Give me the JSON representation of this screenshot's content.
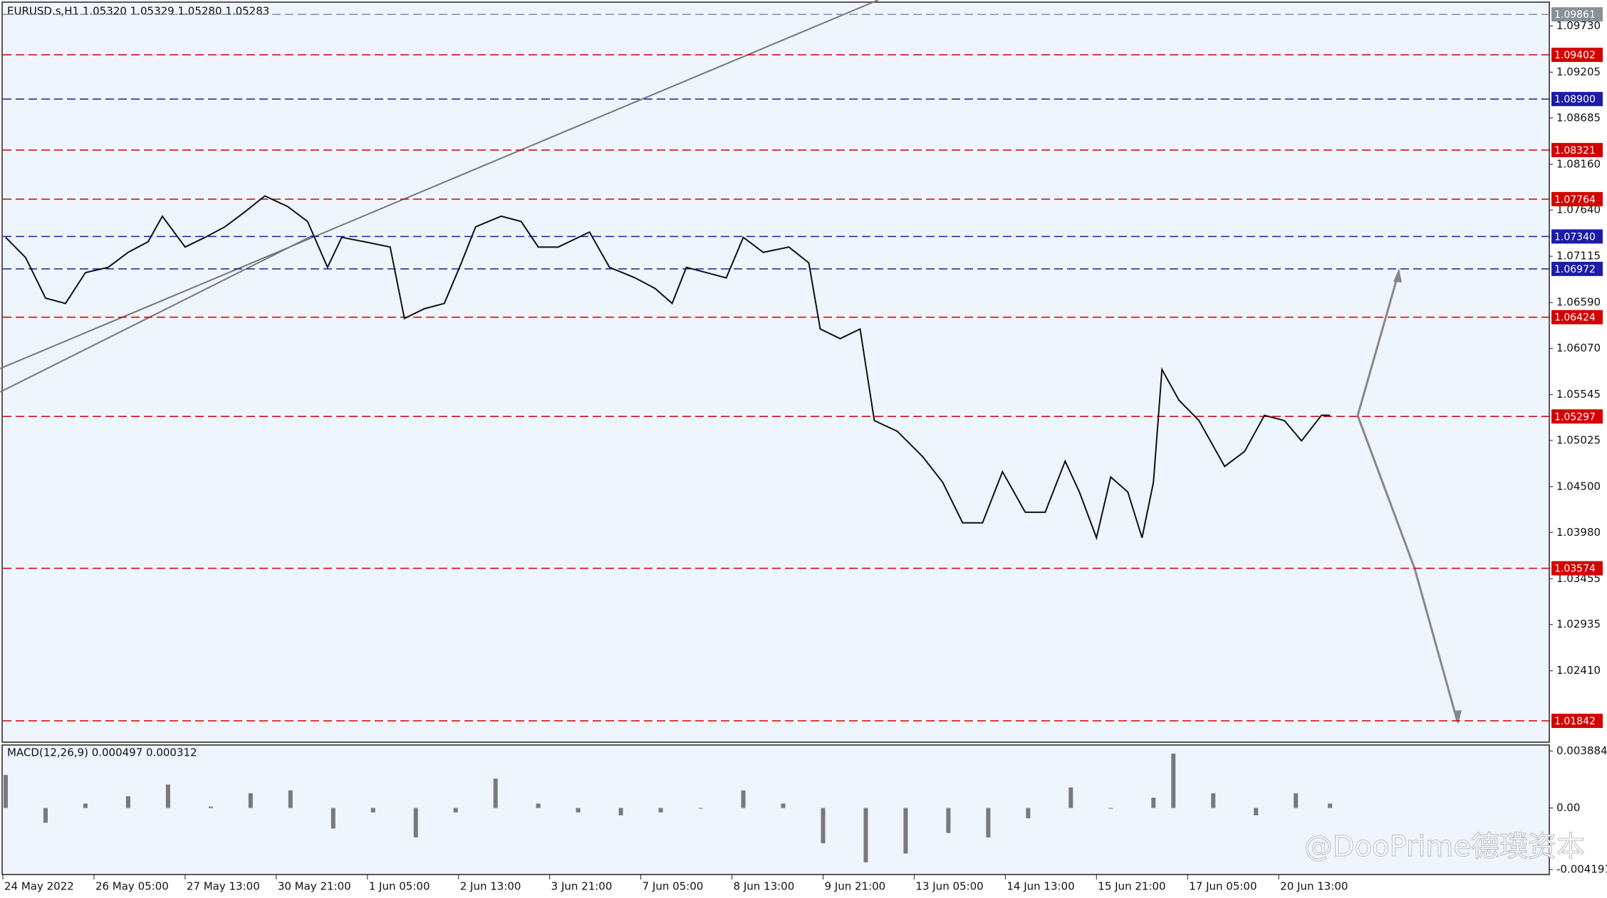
{
  "chart_data": [
    {
      "type": "line",
      "title": "EURUSD.s,H1  1.05320 1.05329 1.05280 1.05283",
      "annotation": "@DooPrime德璞资本",
      "xlim": [
        0,
        543
      ],
      "ylim": [
        1.016,
        1.1
      ],
      "xticks": [
        {
          "value": 0,
          "label": "24 May 2022"
        },
        {
          "value": 32,
          "label": "26 May 05:00"
        },
        {
          "value": 64,
          "label": "27 May 13:00"
        },
        {
          "value": 96,
          "label": "30 May 21:00"
        },
        {
          "value": 128,
          "label": "1 Jun 05:00"
        },
        {
          "value": 160,
          "label": "2 Jun 13:00"
        },
        {
          "value": 192,
          "label": "3 Jun 21:00"
        },
        {
          "value": 224,
          "label": "7 Jun 05:00"
        },
        {
          "value": 256,
          "label": "8 Jun 13:00"
        },
        {
          "value": 288,
          "label": "9 Jun 21:00"
        },
        {
          "value": 320,
          "label": "13 Jun 05:00"
        },
        {
          "value": 352,
          "label": "14 Jun 13:00"
        },
        {
          "value": 384,
          "label": "15 Jun 21:00"
        },
        {
          "value": 416,
          "label": "17 Jun 05:00"
        },
        {
          "value": 448,
          "label": "20 Jun 13:00"
        }
      ],
      "yticks": [
        {
          "value": 1.0973,
          "label": "1.09730"
        },
        1.09205,
        1.08685,
        {
          "value": 1.0816,
          "label": "1.08160"
        },
        {
          "value": 1.0764,
          "label": "1.07640"
        },
        1.07115,
        {
          "value": 1.0659,
          "label": "1.06590"
        },
        {
          "value": 1.0607,
          "label": "1.06070"
        },
        1.05545,
        1.05025,
        {
          "value": 1.045,
          "label": "1.04500"
        },
        {
          "value": 1.0398,
          "label": "1.03980"
        },
        1.03455,
        1.02935,
        {
          "value": 1.0241,
          "label": "1.02410"
        }
      ],
      "levels": [
        {
          "value": 1.09861,
          "color": "#8a8f99"
        },
        {
          "value": 1.09402,
          "color": "#d40000"
        },
        {
          "value": 1.089,
          "label": "1.08900",
          "color": "#1c1ca8"
        },
        {
          "value": 1.08321,
          "color": "#d40000"
        },
        {
          "value": 1.07764,
          "color": "#d40000"
        },
        {
          "value": 1.0734,
          "label": "1.07340",
          "color": "#1c1ca8"
        },
        {
          "value": 1.06972,
          "color": "#1c1ca8"
        },
        {
          "value": 1.06424,
          "color": "#d40000"
        },
        {
          "value": 1.05297,
          "color": "#d40000"
        },
        {
          "value": 1.03574,
          "color": "#d40000"
        },
        {
          "value": 1.01842,
          "color": "#d40000"
        }
      ],
      "series": [
        {
          "color": "#111111",
          "x": [
            1,
            8,
            15,
            22,
            29,
            37,
            44,
            51,
            56,
            64,
            71,
            78,
            85,
            92,
            100,
            107,
            114,
            119,
            127,
            136,
            141,
            148,
            155,
            161,
            166,
            175,
            182,
            188,
            195,
            206,
            213,
            222,
            229,
            235,
            240,
            247,
            254,
            260,
            267,
            276,
            283,
            287,
            294,
            301,
            306,
            314,
            323,
            330,
            337,
            344,
            351,
            359,
            366,
            373,
            378,
            384,
            389,
            395,
            400,
            404,
            407,
            413,
            420,
            429,
            436,
            443,
            450,
            456,
            463,
            466
          ],
          "values": [
            1.0733,
            1.071,
            1.0664,
            1.0658,
            1.0693,
            1.0699,
            1.0716,
            1.0728,
            1.0757,
            1.0722,
            1.0733,
            1.0745,
            1.0762,
            1.078,
            1.0768,
            1.0751,
            1.0699,
            1.0733,
            1.0728,
            1.0722,
            1.0641,
            1.0652,
            1.0658,
            1.0704,
            1.0745,
            1.0757,
            1.0751,
            1.0722,
            1.0722,
            1.0739,
            1.0699,
            1.0687,
            1.0675,
            1.0658,
            1.0699,
            1.0693,
            1.0687,
            1.0733,
            1.0716,
            1.0722,
            1.0704,
            1.0629,
            1.0618,
            1.0629,
            1.0525,
            1.0513,
            1.0484,
            1.0455,
            1.0409,
            1.0409,
            1.0467,
            1.0421,
            1.0421,
            1.0479,
            1.0444,
            1.0392,
            1.0461,
            1.0444,
            1.0392,
            1.0455,
            1.0583,
            1.0548,
            1.0525,
            1.0473,
            1.049,
            1.0531,
            1.0525,
            1.0502,
            1.0531,
            1.0531
          ]
        }
      ]
    },
    {
      "type": "bar",
      "title": "MACD(12,26,9) 0.000497 0.000312",
      "xlim": [
        0,
        543
      ],
      "ylim": [
        -0.00453,
        0.00429
      ],
      "yticks": [
        0.003884,
        {
          "value": 0,
          "label": "0.00"
        },
        -0.004191
      ],
      "color": "#7a7a7a",
      "x": [
        1,
        15,
        29,
        44,
        58,
        73,
        87,
        101,
        116,
        130,
        145,
        159,
        173,
        188,
        202,
        217,
        231,
        245,
        260,
        274,
        288,
        303,
        317,
        332,
        346,
        360,
        375,
        389,
        404,
        411,
        425,
        440,
        454,
        466
      ],
      "values": [
        0.00225,
        -0.001,
        0.0003,
        0.0008,
        0.0016,
        0.0001,
        0.001,
        0.0012,
        -0.0014,
        -0.0003,
        -0.002,
        -0.0003,
        0.002,
        0.0003,
        -0.0003,
        -0.0005,
        -0.0003,
        0,
        0.0012,
        0.0003,
        -0.0024,
        -0.0037,
        -0.0031,
        -0.0017,
        -0.002,
        -0.0007,
        0.0014,
        0,
        0.0007,
        0.0037,
        0.001,
        -0.0005,
        0.001,
        0.0003
      ]
    }
  ]
}
